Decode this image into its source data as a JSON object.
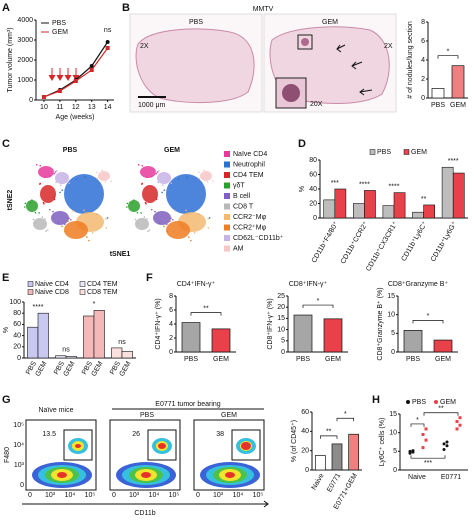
{
  "figure": {
    "panel_labels": [
      "A",
      "B",
      "C",
      "D",
      "E",
      "F",
      "G",
      "H"
    ],
    "b": {
      "title": "MMTV",
      "pbs": "PBS",
      "gem": "GEM",
      "mag_left": "2X",
      "mag_right": "2X",
      "inset": "20X",
      "scale_bar": "1000 μm"
    },
    "c": {
      "pbs": "PBS",
      "gem": "GEM",
      "y_axis": "tSNE2",
      "x_axis": "tSNE1",
      "legend": [
        {
          "label": "Naïve CD4",
          "color": "#e6399b"
        },
        {
          "label": "Neutrophil",
          "color": "#2e6fd6"
        },
        {
          "label": "CD4 TEM",
          "color": "#d62728"
        },
        {
          "label": "γδT",
          "color": "#2ca02c"
        },
        {
          "label": "B cell",
          "color": "#7f5fbf"
        },
        {
          "label": "CD8 T",
          "color": "#b8b8b8"
        },
        {
          "label": "CCR2⁻Mφ",
          "color": "#f5b971"
        },
        {
          "label": "CCR2⁺Mφ",
          "color": "#ef7d22"
        },
        {
          "label": "CD62L⁻CD11b⁺",
          "color": "#c7b3e5"
        },
        {
          "label": "AM",
          "color": "#f7c6c7"
        }
      ]
    },
    "g": {
      "naive": "Naïve mice",
      "tumor": "E0771 tumor bearing",
      "pbs": "PBS",
      "gem": "GEM",
      "gates": [
        "13.5",
        "26",
        "38"
      ],
      "y_axis": "F480",
      "x_axis": "CD11b",
      "yticks": [
        "10⁵",
        "10⁴",
        "10³",
        "0"
      ],
      "xticks": [
        "0",
        "10³",
        "10⁴",
        "10⁵"
      ]
    }
  },
  "chart_data": [
    {
      "type": "line",
      "y_label": "Tumor volume (mm³)",
      "x_label": "Age (weeks)",
      "x": [
        10,
        11,
        12,
        13,
        14
      ],
      "xlim": [
        9.5,
        14.4
      ],
      "xticks": [
        10,
        11,
        12,
        13,
        14
      ],
      "ylim": [
        0,
        4000
      ],
      "yticks": [
        0,
        1000,
        2000,
        3000,
        4000
      ],
      "annotation": "ns",
      "series": [
        {
          "name": "PBS",
          "color": "#111111",
          "values": [
            150,
            500,
            1000,
            1700,
            2900
          ]
        },
        {
          "name": "GEM",
          "color": "#d62728",
          "values": [
            150,
            450,
            950,
            1500,
            2600
          ]
        }
      ]
    },
    {
      "type": "bar",
      "y_label": "# of nodules/lung section",
      "categories": [
        "PBS",
        "GEM"
      ],
      "values": [
        1,
        3.4
      ],
      "colors": [
        "#ffffff",
        "#f08080"
      ],
      "ylim": [
        0,
        8
      ],
      "yticks": [
        0,
        2,
        4,
        6,
        8
      ],
      "significance": "*"
    },
    {
      "type": "grouped_bar",
      "y_label": "%",
      "categories": [
        "CD11b⁺F4/80⁺",
        "CD11b⁺CCR2⁺",
        "CD11b⁺CX3CR1⁺",
        "CD11b⁺Ly6C⁺",
        "CD11b⁺Ly6G⁺"
      ],
      "series": [
        {
          "name": "PBS",
          "color": "#bdbdbd",
          "values": [
            25,
            20,
            17,
            8,
            70
          ]
        },
        {
          "name": "GEM",
          "color": "#e8414a",
          "values": [
            40,
            38,
            35,
            18,
            62
          ]
        }
      ],
      "ylim": [
        0,
        80
      ],
      "yticks": [
        0,
        20,
        40,
        60,
        80
      ],
      "significance": [
        "***",
        "****",
        "****",
        "**",
        "****"
      ]
    },
    {
      "type": "grouped_bar",
      "y_label": "%",
      "categories": [
        "PBS",
        "GEM"
      ],
      "series": [
        {
          "name": "Naive CD4",
          "color": "#c8c8f0",
          "values": [
            55,
            80
          ]
        },
        {
          "name": "CD4 TEM",
          "color": "#e8e8f8",
          "values": [
            4,
            3
          ]
        },
        {
          "name": "Naive CD8",
          "color": "#f4b8b8",
          "values": [
            75,
            85
          ]
        },
        {
          "name": "CD8 TEM",
          "color": "#fbe0e0",
          "values": [
            18,
            12
          ]
        }
      ],
      "ylim": [
        0,
        100
      ],
      "yticks": [
        0,
        20,
        40,
        60,
        80,
        100
      ],
      "significance": [
        "****",
        "ns",
        "*",
        "ns"
      ]
    },
    {
      "type": "bar",
      "title": "CD4⁺IFN-γ⁺",
      "y_label": "CD4⁺IFN-γ⁺ (%)",
      "categories": [
        "PBS",
        "GEM"
      ],
      "values": [
        4.2,
        3.3
      ],
      "colors": [
        "#a6a6a6",
        "#e8414a"
      ],
      "ylim": [
        0,
        8
      ],
      "yticks": [
        0,
        2,
        4,
        6,
        8
      ],
      "significance": "**"
    },
    {
      "type": "bar",
      "title": "CD8⁺IFN-γ⁺",
      "y_label": "CD8⁺IFN-γ⁺ (%)",
      "categories": [
        "PBS",
        "GEM"
      ],
      "values": [
        16.5,
        14.8
      ],
      "colors": [
        "#a6a6a6",
        "#e8414a"
      ],
      "ylim": [
        0,
        25
      ],
      "yticks": [
        0,
        5,
        10,
        15,
        20,
        25
      ],
      "significance": "*"
    },
    {
      "type": "bar",
      "title": "CD8⁺Granzyme B⁺",
      "y_label": "CD8⁺Granzyme B⁺ (%)",
      "categories": [
        "PBS",
        "GEM"
      ],
      "values": [
        5.8,
        3.2
      ],
      "colors": [
        "#a6a6a6",
        "#e8414a"
      ],
      "ylim": [
        0,
        15
      ],
      "yticks": [
        0,
        5,
        10,
        15
      ],
      "significance": "*"
    },
    {
      "type": "bar",
      "y_label": "% (of CD45⁺)",
      "categories": [
        "Naive",
        "E0771",
        "E0771+GEM"
      ],
      "values": [
        15,
        27,
        37
      ],
      "colors": [
        "#ffffff",
        "#8c8c8c",
        "#f08080"
      ],
      "ylim": [
        0,
        60
      ],
      "yticks": [
        0,
        20,
        40,
        60
      ],
      "significance": [
        "**",
        "*"
      ]
    },
    {
      "type": "dot",
      "y_label": "Ly6C⁺ cells (%)",
      "categories": [
        "Naive",
        "E0771"
      ],
      "series": [
        {
          "name": "PBS",
          "color": "#111111",
          "values": [
            [
              4.5,
              4.8,
              5,
              5.2
            ],
            [
              5.5,
              6.5,
              7,
              7.5
            ]
          ]
        },
        {
          "name": "GEM",
          "color": "#e8414a",
          "values": [
            [
              6,
              8,
              9.5,
              11
            ],
            [
              11,
              12,
              13,
              14
            ]
          ]
        }
      ],
      "ylim": [
        0,
        15
      ],
      "yticks": [
        0,
        5,
        10,
        15
      ],
      "significance": [
        "*",
        "**",
        "***"
      ]
    }
  ]
}
